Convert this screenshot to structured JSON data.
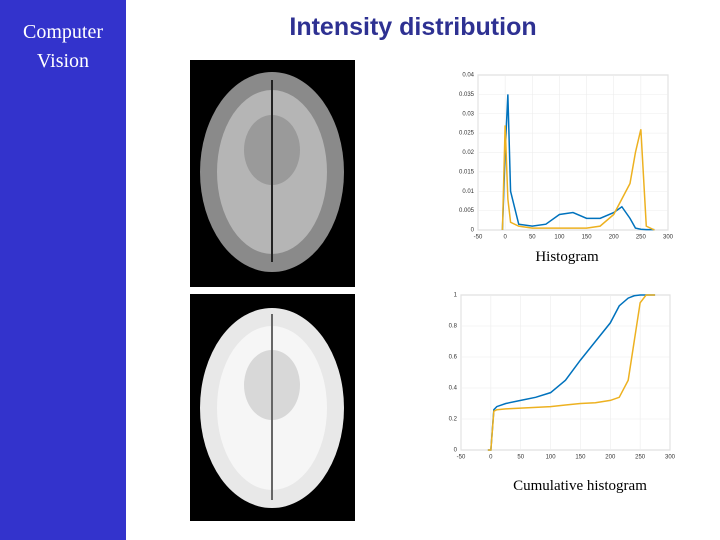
{
  "sidebar": {
    "lines": [
      "Computer",
      "Vision"
    ]
  },
  "title": "Intensity distribution",
  "captions": [
    "Histogram",
    "Cumulative histogram"
  ],
  "chart_data": [
    {
      "type": "line",
      "x": [
        -5,
        0,
        5,
        10,
        25,
        50,
        75,
        100,
        125,
        150,
        175,
        200,
        215,
        230,
        240,
        250,
        260,
        275
      ],
      "series": [
        {
          "color": "#0072bd",
          "values": [
            0,
            0.02,
            0.035,
            0.01,
            0.0015,
            0.001,
            0.0015,
            0.004,
            0.0045,
            0.003,
            0.003,
            0.0045,
            0.006,
            0.003,
            0.0005,
            0.0002,
            0.0001,
            0.0001
          ]
        },
        {
          "color": "#edb120",
          "values": [
            0,
            0.027,
            0.008,
            0.002,
            0.001,
            0.0005,
            0.0005,
            0.0005,
            0.0005,
            0.0005,
            0.001,
            0.004,
            0.008,
            0.012,
            0.02,
            0.026,
            0.001,
            0
          ]
        }
      ],
      "xlim": [
        -50,
        300
      ],
      "xticks": [
        -50,
        0,
        50,
        100,
        150,
        200,
        250,
        300
      ],
      "ylim": [
        0,
        0.04
      ],
      "yticks": [
        0,
        0.005,
        0.01,
        0.015,
        0.02,
        0.025,
        0.03,
        0.035,
        0.04
      ],
      "grid": true
    },
    {
      "type": "line",
      "x": [
        -5,
        0,
        5,
        10,
        25,
        50,
        75,
        100,
        125,
        150,
        175,
        200,
        215,
        230,
        240,
        250,
        260,
        275
      ],
      "series": [
        {
          "color": "#0072bd",
          "values": [
            0,
            0,
            0.26,
            0.28,
            0.3,
            0.32,
            0.34,
            0.37,
            0.45,
            0.58,
            0.7,
            0.82,
            0.93,
            0.98,
            0.995,
            1,
            1,
            1
          ]
        },
        {
          "color": "#edb120",
          "values": [
            0,
            0,
            0.25,
            0.26,
            0.265,
            0.27,
            0.275,
            0.28,
            0.29,
            0.3,
            0.305,
            0.32,
            0.34,
            0.45,
            0.7,
            0.95,
            1,
            1
          ]
        }
      ],
      "xlim": [
        -50,
        300
      ],
      "xticks": [
        -50,
        0,
        50,
        100,
        150,
        200,
        250,
        300
      ],
      "ylim": [
        0,
        1
      ],
      "yticks": [
        0,
        0.2,
        0.4,
        0.6,
        0.8,
        1
      ],
      "grid": true
    }
  ]
}
